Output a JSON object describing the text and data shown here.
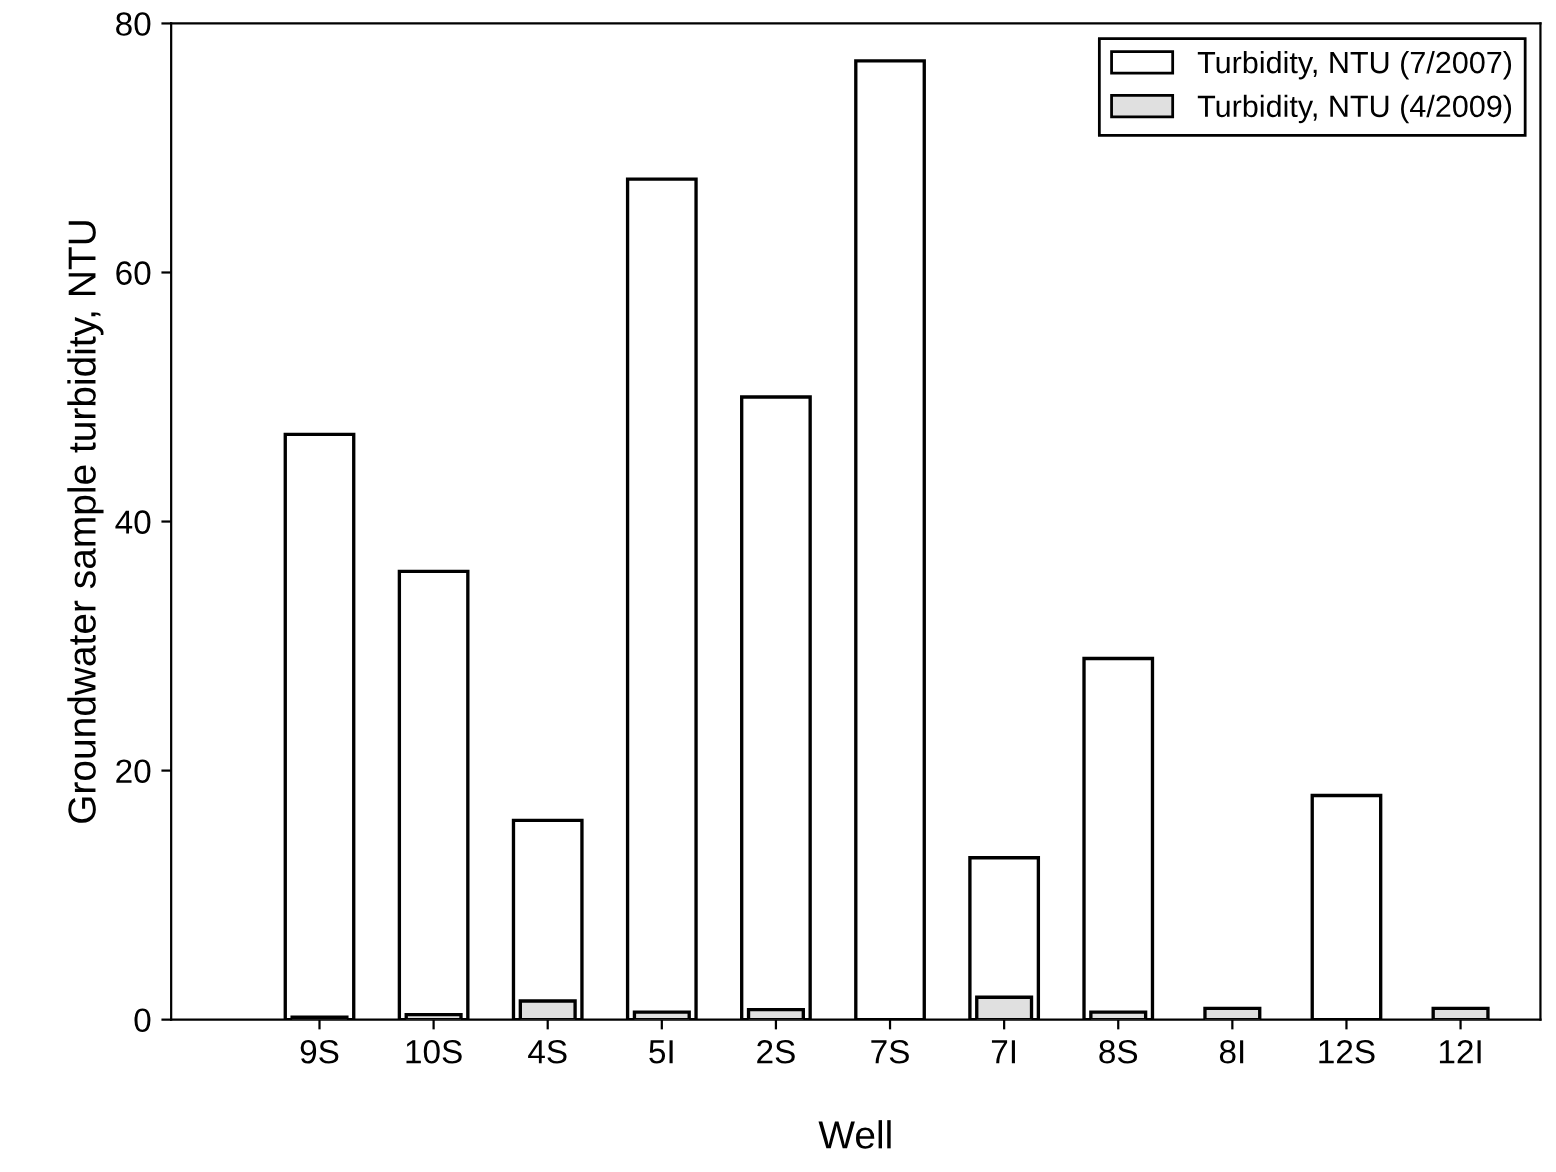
{
  "chart_data": {
    "type": "bar",
    "xlabel": "Well",
    "ylabel": "Groundwater sample turbidity, NTU",
    "categories": [
      "9S",
      "10S",
      "4S",
      "5I",
      "2S",
      "7S",
      "7I",
      "8S",
      "8I",
      "12S",
      "12I"
    ],
    "series": [
      {
        "name": "Turbidity, NTU (7/2007)",
        "color": "#ffffff",
        "values": [
          47,
          36,
          16,
          67.5,
          50,
          77,
          13,
          29,
          null,
          18,
          null
        ]
      },
      {
        "name": "Turbidity, NTU (4/2009)",
        "color": "#e0e0e0",
        "values": [
          0.2,
          0.4,
          1.5,
          0.6,
          0.8,
          null,
          1.8,
          0.6,
          0.9,
          null,
          0.9
        ]
      }
    ],
    "ylim": [
      0,
      80
    ],
    "yticks": [
      0,
      20,
      40,
      60,
      80
    ],
    "grid": false,
    "legend": "top right"
  }
}
